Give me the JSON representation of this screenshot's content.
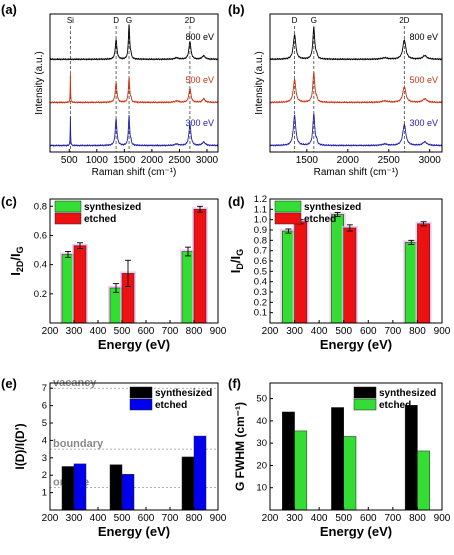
{
  "chart_data": [
    {
      "id": "a",
      "panel_label": "(a)",
      "type": "line",
      "xlabel": "Raman shift (cm⁻¹)",
      "ylabel": "Intensity (a.u.)",
      "xlim": [
        150,
        3200
      ],
      "x_ticks": [
        500,
        1000,
        1500,
        2000,
        2500,
        3000
      ],
      "peak_labels": [
        {
          "label": "Si",
          "x": 520
        },
        {
          "label": "D",
          "x": 1350
        },
        {
          "label": "G",
          "x": 1585
        },
        {
          "label": "2D",
          "x": 2690
        }
      ],
      "series": [
        {
          "name": "800 eV",
          "color": "#000000",
          "offset": 2.0,
          "si": 0.0,
          "d": 0.55,
          "g": 1.0,
          "d2": 0.5
        },
        {
          "name": "500 eV",
          "color": "#cc3311",
          "offset": 1.0,
          "si": 0.85,
          "d": 0.55,
          "g": 0.7,
          "d2": 0.4
        },
        {
          "name": "300 eV",
          "color": "#2222aa",
          "offset": 0.0,
          "si": 0.9,
          "d": 0.75,
          "g": 0.85,
          "d2": 0.6
        }
      ]
    },
    {
      "id": "b",
      "panel_label": "(b)",
      "type": "line",
      "xlabel": "Raman shift (cm⁻¹)",
      "ylabel": "Intensity (a.u.)",
      "xlim": [
        1050,
        3150
      ],
      "x_ticks": [
        1500,
        2000,
        2500,
        3000
      ],
      "peak_labels": [
        {
          "label": "D",
          "x": 1350
        },
        {
          "label": "G",
          "x": 1585
        },
        {
          "label": "2D",
          "x": 2690
        }
      ],
      "series": [
        {
          "name": "800 eV",
          "color": "#000000",
          "offset": 2.0,
          "si": 0.0,
          "d": 0.7,
          "g": 0.9,
          "d2": 0.55
        },
        {
          "name": "500 eV",
          "color": "#cc3311",
          "offset": 1.0,
          "si": 0.0,
          "d": 0.65,
          "g": 0.85,
          "d2": 0.45
        },
        {
          "name": "300 eV",
          "color": "#2222aa",
          "offset": 0.0,
          "si": 0.0,
          "d": 0.85,
          "g": 0.9,
          "d2": 0.6
        }
      ]
    },
    {
      "id": "c",
      "panel_label": "(c)",
      "type": "bar",
      "xlabel": "Energy (eV)",
      "ylabel": "I2D/IG",
      "ylabel_main": "I",
      "ylabel_sub1": "2D",
      "ylabel_mid": "/I",
      "ylabel_sub2": "G",
      "xlim": [
        200,
        900
      ],
      "ylim": [
        0,
        0.85
      ],
      "x_ticks": [
        200,
        300,
        400,
        500,
        600,
        700,
        800,
        900
      ],
      "y_ticks": [
        0.2,
        0.4,
        0.6,
        0.8
      ],
      "categories": [
        300,
        500,
        800
      ],
      "series": [
        {
          "name": "synthesized",
          "color": "#33dd33",
          "values": [
            0.47,
            0.24,
            0.49
          ],
          "errors": [
            0.02,
            0.03,
            0.03
          ]
        },
        {
          "name": "etched",
          "color": "#ee1111",
          "values": [
            0.53,
            0.34,
            0.78
          ],
          "errors": [
            0.02,
            0.09,
            0.02
          ]
        }
      ]
    },
    {
      "id": "d",
      "panel_label": "(d)",
      "type": "bar",
      "xlabel": "Energy (eV)",
      "ylabel": "ID/IG",
      "ylabel_main": "I",
      "ylabel_sub1": "D",
      "ylabel_mid": "/I",
      "ylabel_sub2": "G",
      "xlim": [
        200,
        900
      ],
      "ylim": [
        0,
        1.2
      ],
      "x_ticks": [
        200,
        300,
        400,
        500,
        600,
        700,
        800,
        900
      ],
      "y_ticks": [
        0.1,
        0.2,
        0.3,
        0.4,
        0.5,
        0.6,
        0.7,
        0.8,
        0.9,
        1.0,
        1.1,
        1.2
      ],
      "categories": [
        300,
        500,
        800
      ],
      "series": [
        {
          "name": "synthesized",
          "color": "#33dd33",
          "values": [
            0.89,
            1.05,
            0.78
          ],
          "errors": [
            0.02,
            0.02,
            0.02
          ]
        },
        {
          "name": "etched",
          "color": "#ee1111",
          "values": [
            0.98,
            0.92,
            0.96
          ],
          "errors": [
            0.02,
            0.03,
            0.02
          ]
        }
      ]
    },
    {
      "id": "e",
      "panel_label": "(e)",
      "type": "bar",
      "xlabel": "Energy (eV)",
      "ylabel": "I(D)/I(D')",
      "xlim": [
        200,
        900
      ],
      "ylim": [
        0,
        7.3
      ],
      "x_ticks": [
        200,
        300,
        400,
        500,
        600,
        700,
        800,
        900
      ],
      "y_ticks": [
        1,
        2,
        3,
        4,
        5,
        6,
        7
      ],
      "categories": [
        300,
        500,
        800
      ],
      "series": [
        {
          "name": "synthesized",
          "color": "#000000",
          "values": [
            2.5,
            2.6,
            3.05
          ]
        },
        {
          "name": "etched",
          "color": "#0000ee",
          "values": [
            2.65,
            2.05,
            4.25
          ]
        }
      ],
      "reference_lines": [
        {
          "label": "vacancy",
          "y": 7.0
        },
        {
          "label": "boundary",
          "y": 3.5
        },
        {
          "label": "on-site",
          "y": 1.3
        }
      ]
    },
    {
      "id": "f",
      "panel_label": "(f)",
      "type": "bar",
      "xlabel": "Energy (eV)",
      "ylabel": "G FWHM (cm⁻¹)",
      "xlim": [
        200,
        900
      ],
      "ylim": [
        0,
        57
      ],
      "x_ticks": [
        200,
        300,
        400,
        500,
        600,
        700,
        800,
        900
      ],
      "y_ticks": [
        10,
        20,
        30,
        40,
        50
      ],
      "categories": [
        300,
        500,
        800
      ],
      "series": [
        {
          "name": "synthesized",
          "color": "#000000",
          "values": [
            44,
            46,
            47
          ]
        },
        {
          "name": "etched",
          "color": "#33dd33",
          "values": [
            35.5,
            33,
            26.5
          ]
        }
      ]
    }
  ]
}
